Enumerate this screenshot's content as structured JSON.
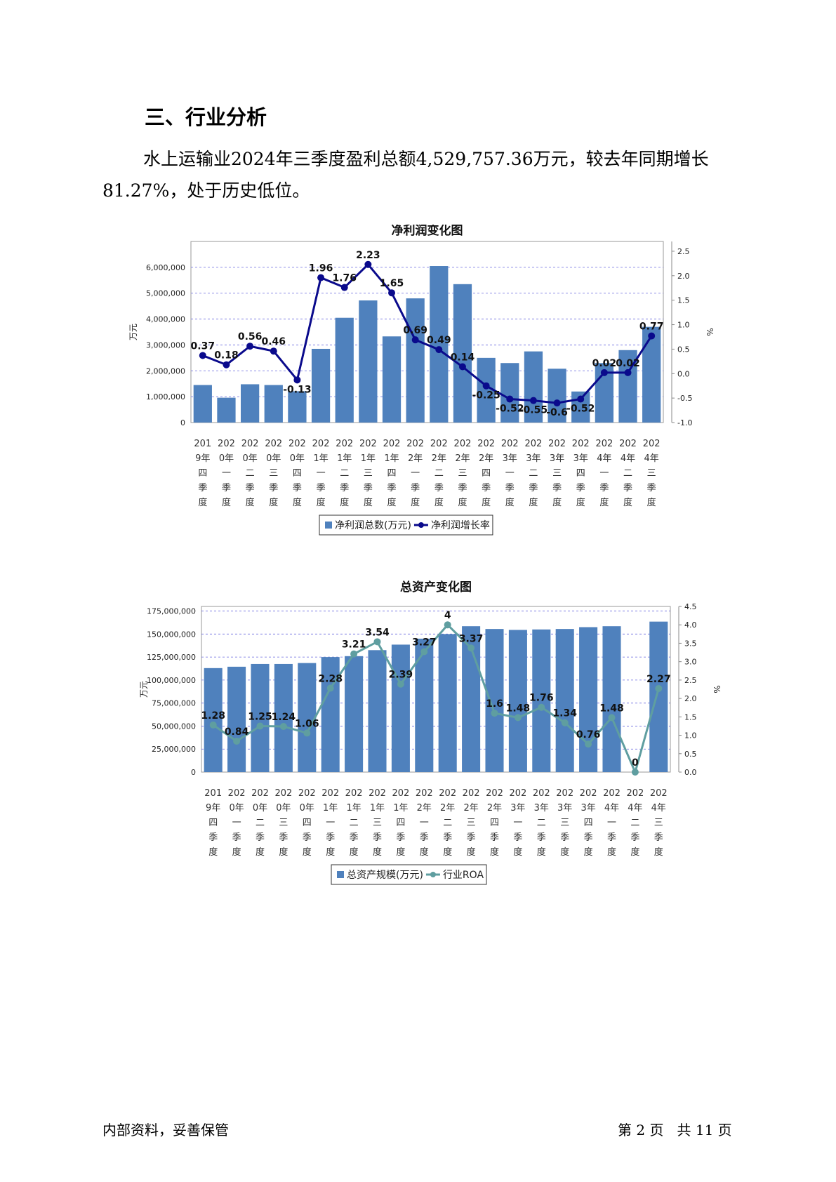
{
  "section_title": "三、行业分析",
  "paragraph": "水上运输业2024年三季度盈利总额4,529,757.36万元，较去年同期增长81.27%，处于历史低位。",
  "footer": {
    "left": "内部资料，妥善保管",
    "right": "第 2 页   共 11 页"
  },
  "chart_data": [
    {
      "type": "bar+line",
      "title": "净利润变化图",
      "ylabel_left": "万元",
      "ylabel_right": "%",
      "ylim_left": [
        0,
        7000000
      ],
      "yticks_left": [
        "0",
        "1,000,000",
        "2,000,000",
        "3,000,000",
        "4,000,000",
        "5,000,000",
        "6,000,000"
      ],
      "ylim_right": [
        -1.0,
        2.7
      ],
      "yticks_right": [
        "-1.0",
        "-0.5",
        "0.0",
        "0.5",
        "1.0",
        "1.5",
        "2.0",
        "2.5"
      ],
      "categories": [
        [
          "201",
          "9年",
          "四",
          "季",
          "度"
        ],
        [
          "202",
          "0年",
          "一",
          "季",
          "度"
        ],
        [
          "202",
          "0年",
          "二",
          "季",
          "度"
        ],
        [
          "202",
          "0年",
          "三",
          "季",
          "度"
        ],
        [
          "202",
          "0年",
          "四",
          "季",
          "度"
        ],
        [
          "202",
          "1年",
          "一",
          "季",
          "度"
        ],
        [
          "202",
          "1年",
          "二",
          "季",
          "度"
        ],
        [
          "202",
          "1年",
          "三",
          "季",
          "度"
        ],
        [
          "202",
          "1年",
          "四",
          "季",
          "度"
        ],
        [
          "202",
          "2年",
          "一",
          "季",
          "度"
        ],
        [
          "202",
          "2年",
          "二",
          "季",
          "度"
        ],
        [
          "202",
          "2年",
          "三",
          "季",
          "度"
        ],
        [
          "202",
          "2年",
          "四",
          "季",
          "度"
        ],
        [
          "202",
          "3年",
          "一",
          "季",
          "度"
        ],
        [
          "202",
          "3年",
          "二",
          "季",
          "度"
        ],
        [
          "202",
          "3年",
          "三",
          "季",
          "度"
        ],
        [
          "202",
          "3年",
          "四",
          "季",
          "度"
        ],
        [
          "202",
          "4年",
          "一",
          "季",
          "度"
        ],
        [
          "202",
          "4年",
          "二",
          "季",
          "度"
        ],
        [
          "202",
          "4年",
          "三",
          "季",
          "度"
        ]
      ],
      "bar_series": {
        "name": "净利润总数(万元)",
        "color": "#4f81bd",
        "values": [
          1450000,
          960000,
          1480000,
          1450000,
          1210000,
          2850000,
          4050000,
          4720000,
          3330000,
          4800000,
          6050000,
          5350000,
          2500000,
          2300000,
          2750000,
          2080000,
          1200000,
          2300000,
          2800000,
          3700000
        ]
      },
      "line_series": {
        "name": "净利润增长率",
        "color": "#0a0a8c",
        "values": [
          0.37,
          0.18,
          0.56,
          0.46,
          -0.13,
          1.96,
          1.76,
          2.23,
          1.65,
          0.69,
          0.49,
          0.14,
          -0.25,
          -0.52,
          -0.55,
          -0.6,
          -0.52,
          0.02,
          0.02,
          0.77
        ],
        "labels": [
          "0.37",
          "0.18",
          "0.56",
          "0.46",
          "-0.13",
          "1.96",
          "1.76",
          "2.23",
          "1.65",
          "0.69",
          "0.49",
          "0.14",
          "-0.25",
          "-0.52",
          "-0.55",
          "-0.6",
          "-0.52",
          "0.02",
          "0.02",
          "0.77"
        ]
      },
      "grid": true,
      "legend": "bottom-center"
    },
    {
      "type": "bar+line",
      "title": "总资产变化图",
      "ylabel_left": "万元",
      "ylabel_right": "%",
      "ylim_left": [
        0,
        180000000
      ],
      "yticks_left": [
        "0",
        "25,000,000",
        "50,000,000",
        "75,000,000",
        "100,000,000",
        "125,000,000",
        "150,000,000",
        "175,000,000"
      ],
      "ylim_right": [
        0.0,
        4.5
      ],
      "yticks_right": [
        "0.0",
        "0.5",
        "1.0",
        "1.5",
        "2.0",
        "2.5",
        "3.0",
        "3.5",
        "4.0",
        "4.5"
      ],
      "categories": [
        [
          "201",
          "9年",
          "四",
          "季",
          "度"
        ],
        [
          "202",
          "0年",
          "一",
          "季",
          "度"
        ],
        [
          "202",
          "0年",
          "二",
          "季",
          "度"
        ],
        [
          "202",
          "0年",
          "三",
          "季",
          "度"
        ],
        [
          "202",
          "0年",
          "四",
          "季",
          "度"
        ],
        [
          "202",
          "1年",
          "一",
          "季",
          "度"
        ],
        [
          "202",
          "1年",
          "二",
          "季",
          "度"
        ],
        [
          "202",
          "1年",
          "三",
          "季",
          "度"
        ],
        [
          "202",
          "1年",
          "四",
          "季",
          "度"
        ],
        [
          "202",
          "2年",
          "一",
          "季",
          "度"
        ],
        [
          "202",
          "2年",
          "二",
          "季",
          "度"
        ],
        [
          "202",
          "2年",
          "三",
          "季",
          "度"
        ],
        [
          "202",
          "2年",
          "四",
          "季",
          "度"
        ],
        [
          "202",
          "3年",
          "一",
          "季",
          "度"
        ],
        [
          "202",
          "3年",
          "二",
          "季",
          "度"
        ],
        [
          "202",
          "3年",
          "三",
          "季",
          "度"
        ],
        [
          "202",
          "3年",
          "四",
          "季",
          "度"
        ],
        [
          "202",
          "4年",
          "一",
          "季",
          "度"
        ],
        [
          "202",
          "4年",
          "二",
          "季",
          "度"
        ],
        [
          "202",
          "4年",
          "三",
          "季",
          "度"
        ]
      ],
      "bar_series": {
        "name": "总资产规模(万元)",
        "color": "#4f81bd",
        "values": [
          113000000,
          114500000,
          117500000,
          117500000,
          118500000,
          125000000,
          126000000,
          132500000,
          138500000,
          145000000,
          150000000,
          158500000,
          155500000,
          154500000,
          155000000,
          155500000,
          157500000,
          158500000,
          0,
          163500000
        ]
      },
      "line_series": {
        "name": "行业ROA",
        "color": "#5f9ea0",
        "values": [
          1.28,
          0.84,
          1.25,
          1.24,
          1.06,
          2.28,
          3.21,
          3.54,
          2.39,
          3.27,
          4,
          3.37,
          1.6,
          1.48,
          1.76,
          1.34,
          0.76,
          1.48,
          0,
          2.27
        ],
        "labels": [
          "1.28",
          "0.84",
          "1.25",
          "1.24",
          "1.06",
          "2.28",
          "3.21",
          "3.54",
          "2.39",
          "3.27",
          "4",
          "3.37",
          "1.6",
          "1.48",
          "1.76",
          "1.34",
          "0.76",
          "1.48",
          "0",
          "2.27"
        ]
      },
      "grid": true,
      "legend": "bottom-center"
    }
  ]
}
